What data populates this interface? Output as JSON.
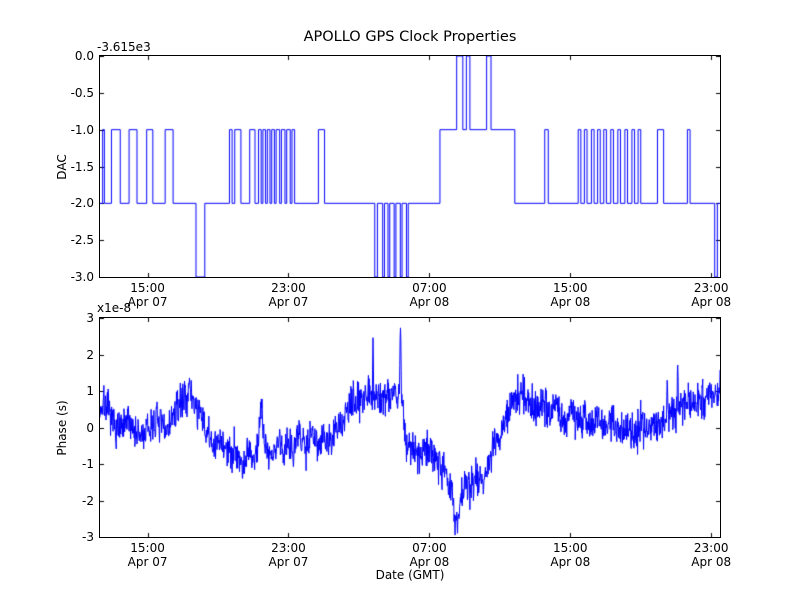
{
  "xaxis": {
    "label": "Date (GMT)",
    "xlim_hours": [
      12.3,
      47.5
    ],
    "ticks": [
      {
        "hour": 15,
        "time": "15:00",
        "date": "Apr 07"
      },
      {
        "hour": 23,
        "time": "23:00",
        "date": "Apr 07"
      },
      {
        "hour": 31,
        "time": "07:00",
        "date": "Apr 08"
      },
      {
        "hour": 39,
        "time": "15:00",
        "date": "Apr 08"
      },
      {
        "hour": 47,
        "time": "23:00",
        "date": "Apr 08"
      }
    ]
  },
  "line_color": "#0000ff",
  "chart_data": [
    {
      "type": "line",
      "name": "dac",
      "title": "APOLLO GPS Clock Properties",
      "ylabel": "DAC",
      "offset_label": "-3.615e3",
      "ylim": [
        -3.0,
        0.0
      ],
      "yticks": [
        {
          "value": 0.0,
          "label": "0.0"
        },
        {
          "value": -0.5,
          "label": "-0.5"
        },
        {
          "value": -1.0,
          "label": "-1.0"
        },
        {
          "value": -1.5,
          "label": "-1.5"
        },
        {
          "value": -2.0,
          "label": "-2.0"
        },
        {
          "value": -2.5,
          "label": "-2.5"
        },
        {
          "value": -3.0,
          "label": "-3.0"
        }
      ],
      "drawstyle": "steps",
      "step_points": [
        [
          12.3,
          -2
        ],
        [
          12.45,
          -1
        ],
        [
          12.55,
          -2
        ],
        [
          12.95,
          -1
        ],
        [
          13.45,
          -2
        ],
        [
          13.95,
          -1
        ],
        [
          14.4,
          -2
        ],
        [
          14.95,
          -1
        ],
        [
          15.3,
          -2
        ],
        [
          16.0,
          -1
        ],
        [
          16.45,
          -2
        ],
        [
          17.75,
          -3
        ],
        [
          18.25,
          -2
        ],
        [
          19.65,
          -1
        ],
        [
          19.8,
          -2
        ],
        [
          19.95,
          -1
        ],
        [
          20.3,
          -2
        ],
        [
          20.8,
          -1
        ],
        [
          21.1,
          -2
        ],
        [
          21.3,
          -1
        ],
        [
          21.45,
          -2
        ],
        [
          21.55,
          -1
        ],
        [
          21.7,
          -2
        ],
        [
          21.8,
          -1
        ],
        [
          21.95,
          -2
        ],
        [
          22.05,
          -1
        ],
        [
          22.2,
          -2
        ],
        [
          22.3,
          -1
        ],
        [
          22.5,
          -2
        ],
        [
          22.6,
          -1
        ],
        [
          22.8,
          -2
        ],
        [
          22.9,
          -1
        ],
        [
          23.1,
          -2
        ],
        [
          23.2,
          -1
        ],
        [
          23.35,
          -2
        ],
        [
          24.7,
          -1
        ],
        [
          25.05,
          -2
        ],
        [
          27.9,
          -3
        ],
        [
          28.05,
          -2
        ],
        [
          28.35,
          -3
        ],
        [
          28.45,
          -2
        ],
        [
          28.65,
          -3
        ],
        [
          28.75,
          -2
        ],
        [
          29.0,
          -3
        ],
        [
          29.1,
          -2
        ],
        [
          29.35,
          -3
        ],
        [
          29.45,
          -2
        ],
        [
          29.7,
          -3
        ],
        [
          29.8,
          -2
        ],
        [
          31.6,
          -1
        ],
        [
          32.55,
          0
        ],
        [
          32.9,
          -1
        ],
        [
          33.1,
          0
        ],
        [
          33.3,
          -1
        ],
        [
          34.25,
          0
        ],
        [
          34.5,
          -1
        ],
        [
          35.85,
          -2
        ],
        [
          37.55,
          -1
        ],
        [
          37.75,
          -2
        ],
        [
          39.45,
          -1
        ],
        [
          39.6,
          -2
        ],
        [
          39.8,
          -1
        ],
        [
          39.95,
          -2
        ],
        [
          40.2,
          -1
        ],
        [
          40.35,
          -2
        ],
        [
          40.55,
          -1
        ],
        [
          40.7,
          -2
        ],
        [
          40.9,
          -1
        ],
        [
          41.05,
          -2
        ],
        [
          41.3,
          -1
        ],
        [
          41.45,
          -2
        ],
        [
          41.7,
          -1
        ],
        [
          41.85,
          -2
        ],
        [
          42.1,
          -1
        ],
        [
          42.25,
          -2
        ],
        [
          42.5,
          -1
        ],
        [
          42.65,
          -2
        ],
        [
          42.85,
          -1
        ],
        [
          43.0,
          -2
        ],
        [
          43.95,
          -1
        ],
        [
          44.3,
          -2
        ],
        [
          45.65,
          -1
        ],
        [
          45.8,
          -2
        ],
        [
          47.2,
          -3
        ],
        [
          47.35,
          -2
        ],
        [
          47.5,
          -2
        ]
      ]
    },
    {
      "type": "line",
      "name": "phase",
      "ylabel": "Phase (s)",
      "offset_label": "x1e-8",
      "ylim": [
        -3,
        3
      ],
      "yticks": [
        {
          "value": 3,
          "label": "3"
        },
        {
          "value": 2,
          "label": "2"
        },
        {
          "value": 1,
          "label": "1"
        },
        {
          "value": 0,
          "label": "0"
        },
        {
          "value": -1,
          "label": "-1"
        },
        {
          "value": -2,
          "label": "-2"
        },
        {
          "value": -3,
          "label": "-3"
        }
      ],
      "keypoints": [
        [
          12.3,
          0.5
        ],
        [
          12.6,
          0.7
        ],
        [
          13.0,
          0.1
        ],
        [
          13.5,
          -0.1
        ],
        [
          14.0,
          0.2
        ],
        [
          14.5,
          -0.3
        ],
        [
          15.0,
          -0.1
        ],
        [
          15.5,
          0.2
        ],
        [
          16.0,
          -0.1
        ],
        [
          16.5,
          0.3
        ],
        [
          17.0,
          0.8
        ],
        [
          17.4,
          1.0
        ],
        [
          17.8,
          0.5
        ],
        [
          18.1,
          0.2
        ],
        [
          18.4,
          -0.2
        ],
        [
          18.8,
          -0.6
        ],
        [
          19.2,
          -0.3
        ],
        [
          19.6,
          -0.8
        ],
        [
          20.0,
          -0.5
        ],
        [
          20.4,
          -1.1
        ],
        [
          20.7,
          -0.6
        ],
        [
          21.0,
          -0.9
        ],
        [
          21.3,
          -0.4
        ],
        [
          21.48,
          1.1
        ],
        [
          21.56,
          -0.2
        ],
        [
          21.8,
          -0.6
        ],
        [
          22.1,
          -0.9
        ],
        [
          22.4,
          -0.3
        ],
        [
          22.7,
          -0.7
        ],
        [
          23.0,
          -0.3
        ],
        [
          23.3,
          -0.6
        ],
        [
          23.6,
          -0.2
        ],
        [
          24.0,
          -0.5
        ],
        [
          24.3,
          -0.1
        ],
        [
          24.7,
          -0.4
        ],
        [
          25.0,
          -0.2
        ],
        [
          25.3,
          -0.5
        ],
        [
          25.7,
          -0.1
        ],
        [
          26.0,
          0.1
        ],
        [
          26.4,
          0.5
        ],
        [
          26.8,
          0.7
        ],
        [
          27.2,
          0.9
        ],
        [
          27.5,
          1.0
        ],
        [
          27.76,
          0.9
        ],
        [
          27.8,
          2.65
        ],
        [
          27.84,
          0.9
        ],
        [
          28.2,
          0.8
        ],
        [
          28.6,
          0.9
        ],
        [
          29.0,
          1.0
        ],
        [
          29.3,
          0.9
        ],
        [
          29.36,
          2.85
        ],
        [
          29.42,
          0.8
        ],
        [
          29.55,
          0.3
        ],
        [
          29.7,
          -0.5
        ],
        [
          30.0,
          -0.6
        ],
        [
          30.4,
          -0.8
        ],
        [
          30.8,
          -0.6
        ],
        [
          31.2,
          -0.7
        ],
        [
          31.6,
          -0.9
        ],
        [
          32.0,
          -1.3
        ],
        [
          32.3,
          -2.0
        ],
        [
          32.5,
          -2.7
        ],
        [
          32.8,
          -1.9
        ],
        [
          33.0,
          -1.5
        ],
        [
          33.3,
          -1.7
        ],
        [
          33.6,
          -1.3
        ],
        [
          34.0,
          -1.5
        ],
        [
          34.3,
          -1.0
        ],
        [
          34.6,
          -0.6
        ],
        [
          35.0,
          -0.3
        ],
        [
          35.3,
          0.2
        ],
        [
          35.7,
          0.6
        ],
        [
          36.0,
          0.9
        ],
        [
          36.3,
          1.0
        ],
        [
          36.6,
          0.7
        ],
        [
          37.0,
          0.5
        ],
        [
          37.4,
          0.8
        ],
        [
          37.8,
          0.4
        ],
        [
          38.2,
          0.6
        ],
        [
          38.6,
          0.2
        ],
        [
          39.0,
          0.5
        ],
        [
          39.4,
          0.1
        ],
        [
          39.8,
          0.4
        ],
        [
          40.2,
          0.0
        ],
        [
          40.6,
          0.3
        ],
        [
          41.0,
          0.0
        ],
        [
          41.4,
          0.2
        ],
        [
          41.8,
          -0.2
        ],
        [
          42.2,
          0.1
        ],
        [
          42.6,
          -0.2
        ],
        [
          43.0,
          0.1
        ],
        [
          43.4,
          -0.1
        ],
        [
          43.8,
          0.2
        ],
        [
          44.2,
          0.1
        ],
        [
          44.46,
          0.3
        ],
        [
          44.5,
          1.8
        ],
        [
          44.54,
          0.3
        ],
        [
          44.8,
          0.4
        ],
        [
          45.06,
          0.5
        ],
        [
          45.1,
          1.9
        ],
        [
          45.14,
          0.5
        ],
        [
          45.4,
          0.6
        ],
        [
          45.7,
          0.8
        ],
        [
          46.0,
          0.5
        ],
        [
          46.3,
          0.9
        ],
        [
          46.6,
          0.6
        ],
        [
          47.0,
          1.0
        ],
        [
          47.3,
          0.8
        ],
        [
          47.5,
          1.2
        ]
      ],
      "noise": {
        "seed": 7,
        "amplitude": 0.5,
        "dt_hours": 0.02
      }
    }
  ]
}
